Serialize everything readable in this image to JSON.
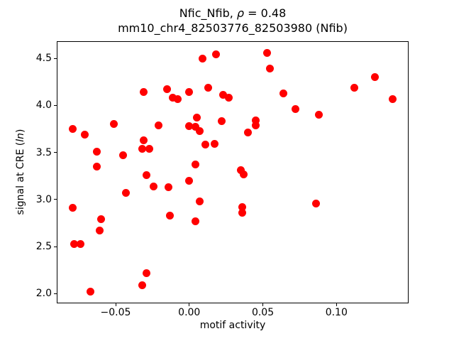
{
  "figure": {
    "title_line1_prefix": "Nfic_Nfib, ",
    "title_rho": "ρ",
    "title_line1_suffix": " = 0.48",
    "title_line2": "mm10_chr4_82503776_82503980 (Nfib)",
    "xlabel": "motif activity",
    "ylabel_prefix": "signal at CRE (",
    "ylabel_italic": "ln",
    "ylabel_suffix": ")"
  },
  "chart_data": {
    "type": "scatter",
    "title": "Nfic_Nfib, ρ = 0.48",
    "subtitle": "mm10_chr4_82503776_82503980 (Nfib)",
    "xlabel": "motif activity",
    "ylabel": "signal at CRE (ln)",
    "marker_color": "#ff0000",
    "grid": false,
    "legend": false,
    "xlim": [
      -0.09,
      0.149
    ],
    "ylim": [
      1.895,
      4.685
    ],
    "xticks": [
      {
        "v": -0.05,
        "label": "−0.05"
      },
      {
        "v": 0.0,
        "label": "0.00"
      },
      {
        "v": 0.05,
        "label": "0.05"
      },
      {
        "v": 0.1,
        "label": "0.10"
      }
    ],
    "yticks": [
      {
        "v": 2.0,
        "label": "2.0"
      },
      {
        "v": 2.5,
        "label": "2.5"
      },
      {
        "v": 3.0,
        "label": "3.0"
      },
      {
        "v": 3.5,
        "label": "3.5"
      },
      {
        "v": 4.0,
        "label": "4.0"
      },
      {
        "v": 4.5,
        "label": "4.5"
      }
    ],
    "points": [
      [
        0.009,
        4.5
      ],
      [
        0.018,
        4.54
      ],
      [
        0.053,
        4.56
      ],
      [
        0.055,
        4.39
      ],
      [
        -0.031,
        4.14
      ],
      [
        -0.015,
        4.17
      ],
      [
        -0.011,
        4.08
      ],
      [
        -0.008,
        4.07
      ],
      [
        0.0,
        4.14
      ],
      [
        0.013,
        4.19
      ],
      [
        0.023,
        4.11
      ],
      [
        0.027,
        4.08
      ],
      [
        0.064,
        4.13
      ],
      [
        0.072,
        3.96
      ],
      [
        0.088,
        3.9
      ],
      [
        0.112,
        4.19
      ],
      [
        0.126,
        4.3
      ],
      [
        0.138,
        4.07
      ],
      [
        -0.079,
        3.75
      ],
      [
        -0.071,
        3.69
      ],
      [
        -0.051,
        3.8
      ],
      [
        -0.021,
        3.79
      ],
      [
        0.005,
        3.87
      ],
      [
        0.0,
        3.78
      ],
      [
        0.004,
        3.77
      ],
      [
        0.007,
        3.73
      ],
      [
        0.022,
        3.83
      ],
      [
        0.045,
        3.84
      ],
      [
        0.045,
        3.79
      ],
      [
        0.04,
        3.71
      ],
      [
        -0.031,
        3.63
      ],
      [
        -0.032,
        3.54
      ],
      [
        -0.027,
        3.54
      ],
      [
        -0.063,
        3.51
      ],
      [
        -0.045,
        3.47
      ],
      [
        0.011,
        3.58
      ],
      [
        0.017,
        3.59
      ],
      [
        -0.063,
        3.35
      ],
      [
        0.004,
        3.37
      ],
      [
        0.035,
        3.31
      ],
      [
        0.037,
        3.27
      ],
      [
        -0.029,
        3.26
      ],
      [
        -0.024,
        3.14
      ],
      [
        -0.014,
        3.13
      ],
      [
        -0.043,
        3.07
      ],
      [
        0.0,
        3.2
      ],
      [
        0.007,
        2.98
      ],
      [
        -0.079,
        2.91
      ],
      [
        -0.06,
        2.79
      ],
      [
        -0.061,
        2.67
      ],
      [
        -0.078,
        2.53
      ],
      [
        -0.074,
        2.53
      ],
      [
        -0.013,
        2.83
      ],
      [
        0.004,
        2.77
      ],
      [
        0.036,
        2.92
      ],
      [
        0.036,
        2.86
      ],
      [
        0.086,
        2.96
      ],
      [
        -0.029,
        2.22
      ],
      [
        -0.032,
        2.09
      ],
      [
        -0.067,
        2.02
      ]
    ]
  }
}
